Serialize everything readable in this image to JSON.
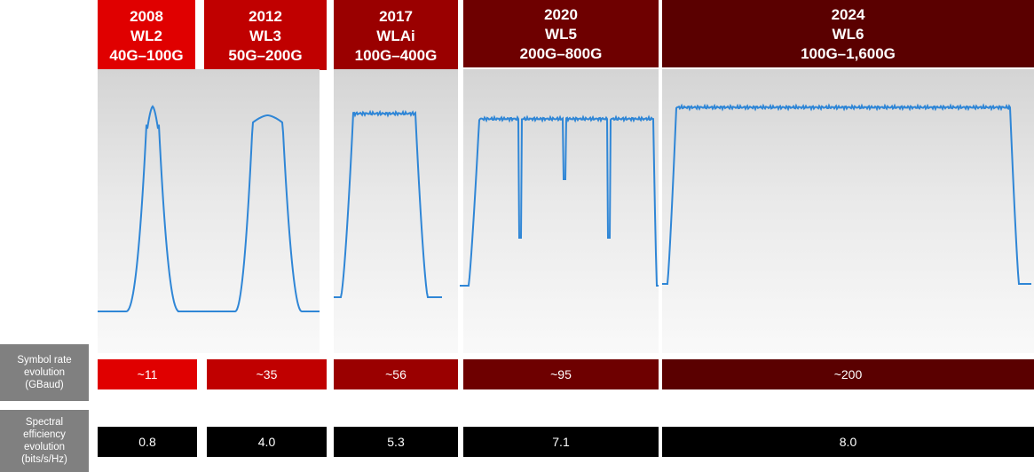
{
  "colors": {
    "wl2": "#e00000",
    "wl3": "#c00000",
    "wl4": "#9a0000",
    "wl5": "#6e0000",
    "wl6": "#5a0000",
    "trace": "#2f86d6",
    "label_bg": "#808080",
    "efficiency_bg": "#000000"
  },
  "generations": [
    {
      "year": "2008",
      "name": "WL2",
      "capacity": "40G–100G",
      "symbol_rate": "~11",
      "spectral_efficiency": "0.8"
    },
    {
      "year": "2012",
      "name": "WL3",
      "capacity": "50G–200G",
      "symbol_rate": "~35",
      "spectral_efficiency": "4.0"
    },
    {
      "year": "2017",
      "name": "WLAi",
      "capacity": "100G–400G",
      "symbol_rate": "~56",
      "spectral_efficiency": "5.3"
    },
    {
      "year": "2020",
      "name": "WL5",
      "capacity": "200G–800G",
      "symbol_rate": "~95",
      "spectral_efficiency": "7.1"
    },
    {
      "year": "2024",
      "name": "WL6",
      "capacity": "100G–1,600G",
      "symbol_rate": "~200",
      "spectral_efficiency": "8.0"
    }
  ],
  "rows": {
    "symbol_rate": {
      "line1": "Symbol rate",
      "line2": "evolution",
      "line3": "(GBaud)"
    },
    "spectral_efficiency": {
      "line1": "Spectral",
      "line2": "efficiency",
      "line3": "evolution",
      "line4": "(bits/s/Hz)"
    }
  }
}
